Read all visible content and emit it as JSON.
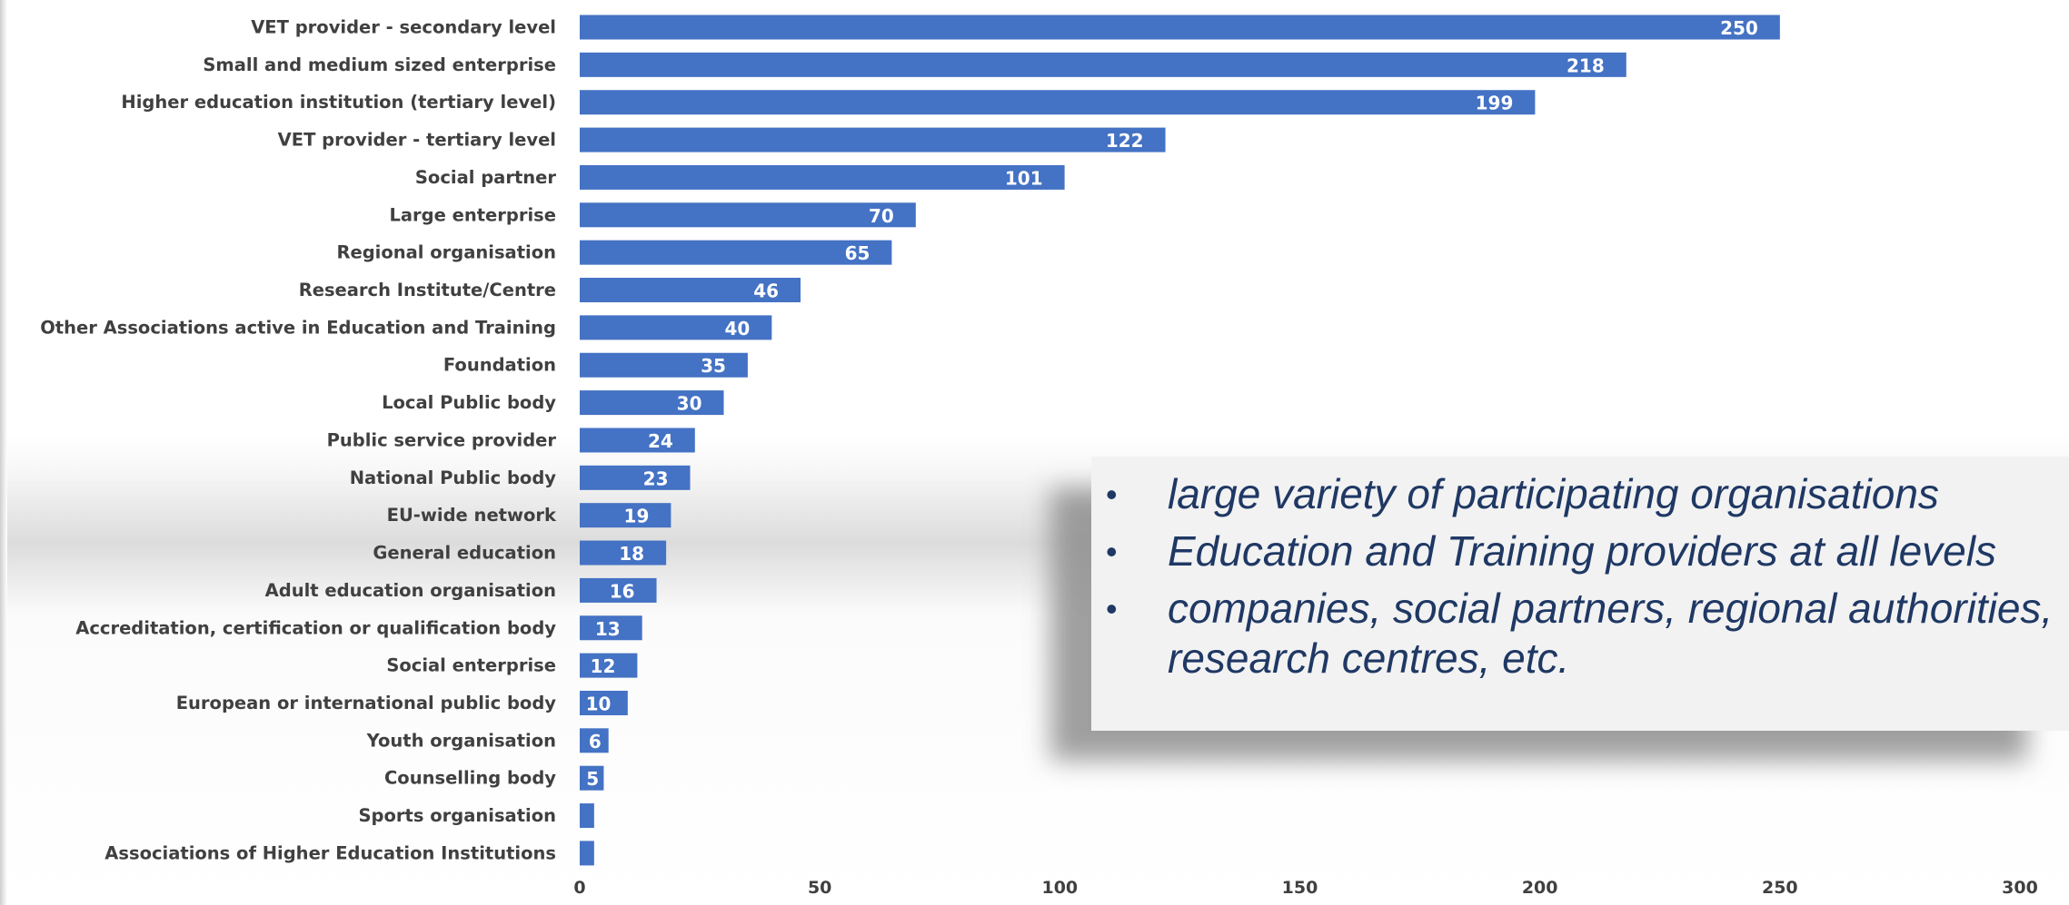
{
  "chart_data": {
    "type": "bar",
    "orientation": "horizontal",
    "categories": [
      "VET provider - secondary level",
      "Small and medium sized enterprise",
      "Higher education institution (tertiary level)",
      "VET provider - tertiary level",
      "Social partner",
      "Large enterprise",
      "Regional organisation",
      "Research Institute/Centre",
      "Other Associations active in Education and Training",
      "Foundation",
      "Local Public body",
      "Public service provider",
      "National Public body",
      "EU-wide network",
      "General education",
      "Adult education organisation",
      "Accreditation, certification or qualification body",
      "Social enterprise",
      "European or international public body",
      "Youth organisation",
      "Counselling body",
      "Sports organisation",
      "Associations of Higher Education Institutions"
    ],
    "values": [
      250,
      218,
      199,
      122,
      101,
      70,
      65,
      46,
      40,
      35,
      30,
      24,
      23,
      19,
      18,
      16,
      13,
      12,
      10,
      6,
      5,
      3,
      3
    ],
    "value_labels": [
      "250",
      "218",
      "199",
      "122",
      "101",
      "70",
      "65",
      "46",
      "40",
      "35",
      "30",
      "24",
      "23",
      "19",
      "18",
      "16",
      "13",
      "12",
      "10",
      "6",
      "5",
      "",
      ""
    ],
    "xlim": [
      0,
      300
    ],
    "xticks": [
      0,
      50,
      100,
      150,
      200,
      250,
      300
    ],
    "title": "",
    "xlabel": "",
    "ylabel": "",
    "grid": false,
    "legend": "none",
    "bar_color": "#4472c4"
  },
  "callout": {
    "bullet": "•",
    "items": [
      "large variety of participating organisations",
      "Education and Training providers at all levels",
      "companies, social partners, regional authorities, research centres, etc."
    ]
  },
  "colors": {
    "bar": "#4472c4",
    "label_text": "#404040",
    "callout_text": "#1f3864",
    "callout_bg": "#f2f2f2"
  }
}
